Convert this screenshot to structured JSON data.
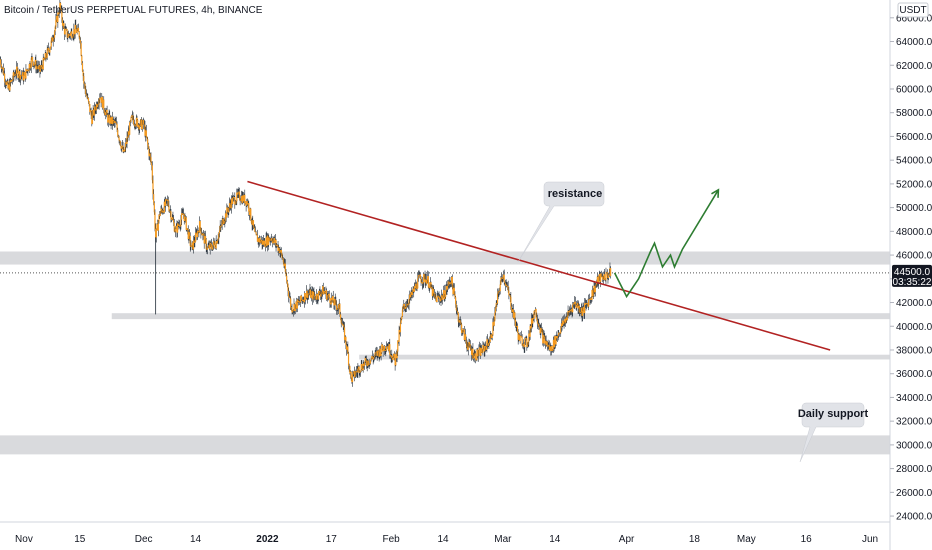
{
  "title": "Bitcoin / TetherUS PERPETUAL FUTURES, 4h, BINANCE",
  "currency_badge": "USDT",
  "current_price_label": "44500.0",
  "countdown_label": "03:35:22",
  "annotations": {
    "resistance": "resistance",
    "daily_support": "Daily support"
  },
  "colors": {
    "candle_up": "#f59a1f",
    "candle_wick": "#1f2a35",
    "trendline": "#b22222",
    "projection": "#2e7d32",
    "zone": "#d9dadd",
    "callout_bg": "#e1e3e8",
    "price_badge": "#131722"
  },
  "chart_data": {
    "type": "candlestick",
    "title": "Bitcoin / TetherUS PERPETUAL FUTURES, 4h, BINANCE",
    "ylim": [
      23500,
      67500
    ],
    "y_ticks": [
      24000,
      26000,
      28000,
      30000,
      32000,
      34000,
      36000,
      38000,
      40000,
      42000,
      44000,
      46000,
      48000,
      50000,
      52000,
      54000,
      56000,
      58000,
      60000,
      62000,
      64000,
      66000
    ],
    "y_tick_labels": [
      "24000.0",
      "26000.0",
      "28000.0",
      "30000.0",
      "32000.0",
      "34000.0",
      "36000.0",
      "38000.0",
      "40000.0",
      "42000.0",
      "44000.0",
      "46000.0",
      "48000.0",
      "50000.0",
      "52000.0",
      "54000.0",
      "56000.0",
      "58000.0",
      "60000.0",
      "62000.0",
      "64000.0",
      "66000.0"
    ],
    "xlim": [
      "2021-10-26",
      "2022-06-06"
    ],
    "x_ticks": [
      {
        "date": "2021-11-01",
        "label": "Nov"
      },
      {
        "date": "2021-11-15",
        "label": "15"
      },
      {
        "date": "2021-12-01",
        "label": "Dec"
      },
      {
        "date": "2021-12-14",
        "label": "14"
      },
      {
        "date": "2022-01-01",
        "label": "2022",
        "bold": true
      },
      {
        "date": "2022-01-17",
        "label": "17"
      },
      {
        "date": "2022-02-01",
        "label": "Feb"
      },
      {
        "date": "2022-02-14",
        "label": "14"
      },
      {
        "date": "2022-03-01",
        "label": "Mar"
      },
      {
        "date": "2022-03-14",
        "label": "14"
      },
      {
        "date": "2022-04-01",
        "label": "Apr"
      },
      {
        "date": "2022-04-18",
        "label": "18"
      },
      {
        "date": "2022-05-01",
        "label": "May"
      },
      {
        "date": "2022-05-16",
        "label": "16"
      },
      {
        "date": "2022-06-01",
        "label": "Jun"
      }
    ],
    "price_path": [
      [
        "2021-10-26",
        62500
      ],
      [
        "2021-10-28",
        60000
      ],
      [
        "2021-10-30",
        61500
      ],
      [
        "2021-11-01",
        61000
      ],
      [
        "2021-11-03",
        62500
      ],
      [
        "2021-11-05",
        61500
      ],
      [
        "2021-11-08",
        64000
      ],
      [
        "2021-11-10",
        67000
      ],
      [
        "2021-11-11",
        65000
      ],
      [
        "2021-11-12",
        64500
      ],
      [
        "2021-11-14",
        65000
      ],
      [
        "2021-11-15",
        64500
      ],
      [
        "2021-11-16",
        60500
      ],
      [
        "2021-11-18",
        57500
      ],
      [
        "2021-11-20",
        59500
      ],
      [
        "2021-11-22",
        57500
      ],
      [
        "2021-11-24",
        57000
      ],
      [
        "2021-11-26",
        54500
      ],
      [
        "2021-11-28",
        57500
      ],
      [
        "2021-11-30",
        57000
      ],
      [
        "2021-12-01",
        57000
      ],
      [
        "2021-12-03",
        53500
      ],
      [
        "2021-12-04",
        47500
      ],
      [
        "2021-12-05",
        49500
      ],
      [
        "2021-12-07",
        50500
      ],
      [
        "2021-12-09",
        48000
      ],
      [
        "2021-12-11",
        49500
      ],
      [
        "2021-12-13",
        46500
      ],
      [
        "2021-12-15",
        48500
      ],
      [
        "2021-12-17",
        46500
      ],
      [
        "2021-12-19",
        47000
      ],
      [
        "2021-12-21",
        49000
      ],
      [
        "2021-12-23",
        50500
      ],
      [
        "2021-12-25",
        51000
      ],
      [
        "2021-12-27",
        50500
      ],
      [
        "2021-12-29",
        47500
      ],
      [
        "2021-12-31",
        47000
      ],
      [
        "2022-01-02",
        47500
      ],
      [
        "2022-01-04",
        46500
      ],
      [
        "2022-01-05",
        45500
      ],
      [
        "2022-01-07",
        41500
      ],
      [
        "2022-01-09",
        42000
      ],
      [
        "2022-01-11",
        42800
      ],
      [
        "2022-01-13",
        42500
      ],
      [
        "2022-01-15",
        43000
      ],
      [
        "2022-01-17",
        42200
      ],
      [
        "2022-01-19",
        41500
      ],
      [
        "2022-01-21",
        38000
      ],
      [
        "2022-01-22",
        35500
      ],
      [
        "2022-01-24",
        36500
      ],
      [
        "2022-01-26",
        37000
      ],
      [
        "2022-01-28",
        37500
      ],
      [
        "2022-01-31",
        38500
      ],
      [
        "2022-02-02",
        37000
      ],
      [
        "2022-02-04",
        41500
      ],
      [
        "2022-02-06",
        42500
      ],
      [
        "2022-02-08",
        44000
      ],
      [
        "2022-02-10",
        44000
      ],
      [
        "2022-02-12",
        42300
      ],
      [
        "2022-02-14",
        42500
      ],
      [
        "2022-02-16",
        44000
      ],
      [
        "2022-02-18",
        40500
      ],
      [
        "2022-02-20",
        38500
      ],
      [
        "2022-02-22",
        37500
      ],
      [
        "2022-02-24",
        38000
      ],
      [
        "2022-02-26",
        39000
      ],
      [
        "2022-02-28",
        43000
      ],
      [
        "2022-03-01",
        44500
      ],
      [
        "2022-03-03",
        42000
      ],
      [
        "2022-03-05",
        39000
      ],
      [
        "2022-03-07",
        38500
      ],
      [
        "2022-03-09",
        41500
      ],
      [
        "2022-03-11",
        39000
      ],
      [
        "2022-03-13",
        38000
      ],
      [
        "2022-03-15",
        39500
      ],
      [
        "2022-03-17",
        40800
      ],
      [
        "2022-03-19",
        42000
      ],
      [
        "2022-03-21",
        41200
      ],
      [
        "2022-03-23",
        42500
      ],
      [
        "2022-03-25",
        44000
      ],
      [
        "2022-03-27",
        44300
      ],
      [
        "2022-03-28",
        44500
      ]
    ],
    "zones": [
      {
        "name": "upper zone",
        "from": 45200,
        "to": 46300,
        "start": "2021-10-26"
      },
      {
        "name": "middle support",
        "from": 40600,
        "to": 41100,
        "start": "2021-11-23"
      },
      {
        "name": "lower zone",
        "from": 37200,
        "to": 37600,
        "start": "2022-01-24"
      },
      {
        "name": "daily support zone",
        "from": 29200,
        "to": 30800,
        "start": "2021-10-26"
      }
    ],
    "trendline": {
      "points": [
        [
          "2021-12-27",
          52200
        ],
        [
          "2022-05-22",
          38000
        ]
      ]
    },
    "projection": {
      "points": [
        [
          "2022-03-29",
          44500
        ],
        [
          "2022-04-01",
          42500
        ],
        [
          "2022-04-04",
          44000
        ],
        [
          "2022-04-07",
          46300
        ],
        [
          "2022-04-08",
          47000
        ],
        [
          "2022-04-10",
          45000
        ],
        [
          "2022-04-12",
          46000
        ],
        [
          "2022-04-13",
          45000
        ],
        [
          "2022-04-15",
          46500
        ],
        [
          "2022-04-24",
          51500
        ]
      ]
    },
    "current_price": 44500
  }
}
